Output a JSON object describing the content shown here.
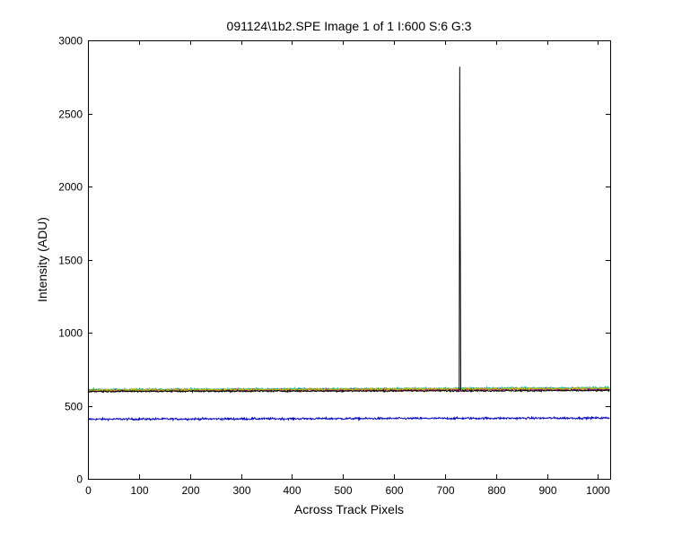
{
  "chart_data": {
    "type": "line",
    "title": "091124\\1b2.SPE  Image 1 of 1  I:600  S:6  G:3",
    "xlabel": "Across Track Pixels",
    "ylabel": "Intensity (ADU)",
    "xlim": [
      0,
      1024
    ],
    "ylim": [
      0,
      3000
    ],
    "x_ticks": [
      0,
      100,
      200,
      300,
      400,
      500,
      600,
      700,
      800,
      900,
      1000
    ],
    "y_ticks": [
      0,
      500,
      1000,
      1500,
      2000,
      2500,
      3000
    ],
    "grid": false,
    "legend": "none",
    "x_points": 1024,
    "series": [
      {
        "color": "#0000bf",
        "baseline": 408,
        "noise": 5,
        "slope_per_1000": 8
      },
      {
        "color": "#ff0000",
        "baseline": 605,
        "noise": 5,
        "slope_per_1000": 10
      },
      {
        "color": "#00a000",
        "baseline": 607,
        "noise": 5,
        "slope_per_1000": 12
      },
      {
        "color": "#00bfbf",
        "baseline": 608,
        "noise": 5,
        "slope_per_1000": 14
      },
      {
        "color": "#bf00bf",
        "baseline": 604,
        "noise": 5,
        "slope_per_1000": 10
      },
      {
        "color": "#bfbf00",
        "baseline": 606,
        "noise": 5,
        "slope_per_1000": 12
      },
      {
        "color": "#000000",
        "baseline": 598,
        "noise": 4,
        "slope_per_1000": 6,
        "spikes": [
          {
            "x": 729,
            "y": 2820
          },
          {
            "x": 730,
            "y": 1720
          }
        ]
      }
    ]
  }
}
